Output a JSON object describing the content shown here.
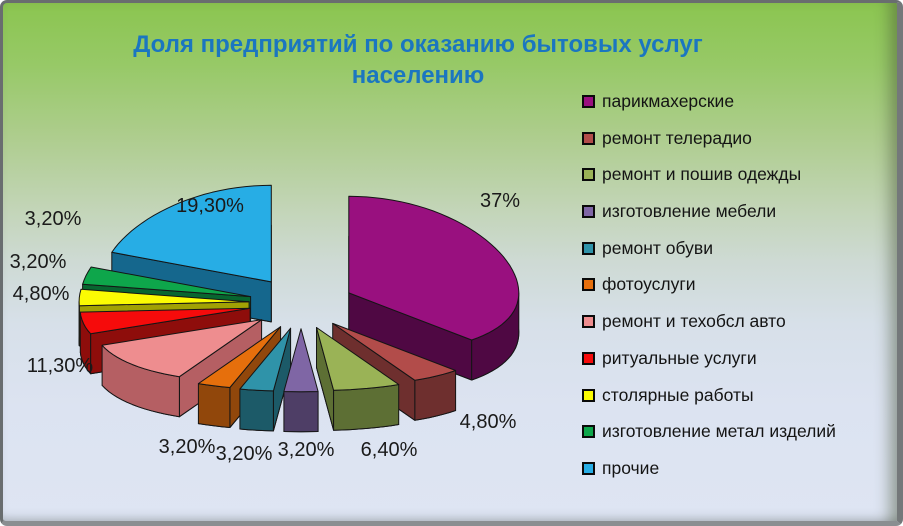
{
  "title": {
    "line1": "Доля предприятий по оказанию бытовых услуг",
    "line2": "населению",
    "color": "#1b76c0"
  },
  "theme": {
    "background_top": "#8bc550",
    "background_bottom": "#dee5f3",
    "frame_border": "#696d6f",
    "value_label_color": "#1a1a1a",
    "legend_text_color": "#141414"
  },
  "chart_data": {
    "type": "pie",
    "style": "3d-exploded",
    "title": "Доля предприятий по оказанию бытовых услуг населению",
    "unit": "%",
    "decimal_separator": ",",
    "legend_position": "right",
    "start_angle_deg": 0,
    "direction": "clockwise",
    "slices": [
      {
        "label": "парикмахерские",
        "value": 37.0,
        "display": "37%",
        "color": "#99107f",
        "side_color": "#4f0843"
      },
      {
        "label": "ремонт телерадио",
        "value": 4.8,
        "display": "4,80%",
        "color": "#b24c4a",
        "side_color": "#6e2f2e"
      },
      {
        "label": "ремонт и пошив одежды",
        "value": 6.4,
        "display": "6,40%",
        "color": "#9ab356",
        "side_color": "#5d6f34"
      },
      {
        "label": "изготовление мебели",
        "value": 3.2,
        "display": "3,20%",
        "color": "#7f66a5",
        "side_color": "#4e3e66"
      },
      {
        "label": "ремонт обуви",
        "value": 3.2,
        "display": "3,20%",
        "color": "#2f93a9",
        "side_color": "#1c5a68"
      },
      {
        "label": "фотоуслуги",
        "value": 3.2,
        "display": "3,20%",
        "color": "#e66f0c",
        "side_color": "#91470b"
      },
      {
        "label": "ремонт и техобсл авто",
        "value": 11.3,
        "display": "11,30%",
        "color": "#ee8d8f",
        "side_color": "#b55f63"
      },
      {
        "label": "ритуальные услуги",
        "value": 4.8,
        "display": "4,80%",
        "color": "#f60b0b",
        "side_color": "#8e0d0b"
      },
      {
        "label": "столярные работы",
        "value": 3.2,
        "display": "3,20%",
        "color": "#fbfb03",
        "side_color": "#a1a104"
      },
      {
        "label": "изготовление метал изделий",
        "value": 3.2,
        "display": "3,20%",
        "color": "#0ea64b",
        "side_color": "#086630"
      },
      {
        "label": "прочие",
        "value": 19.3,
        "display": "19,30%",
        "color": "#27ade5",
        "side_color": "#15678d"
      }
    ]
  }
}
